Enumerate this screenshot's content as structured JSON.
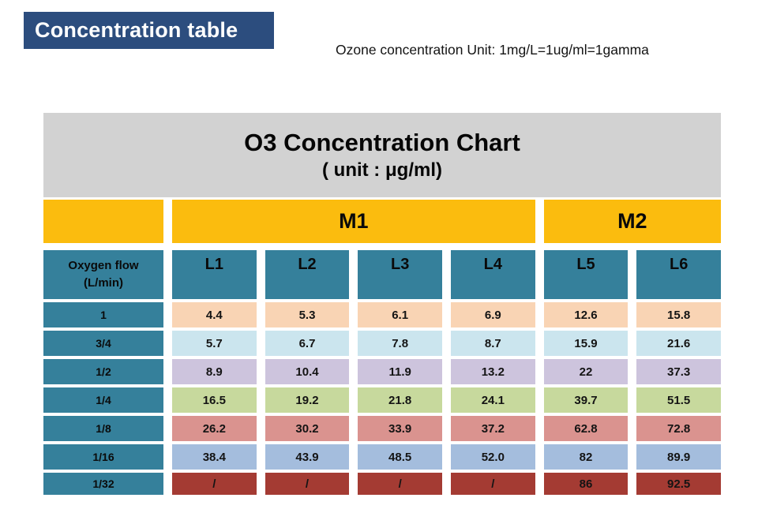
{
  "slide": {
    "banner_title": "Concentration table",
    "unit_note": "Ozone concentration Unit: 1mg/L=1ug/ml=1gamma"
  },
  "colors": {
    "banner_bg": "#2C4D7E",
    "banner_text": "#FFFFFF",
    "table_header_bg": "#D2D2D2",
    "group_header_bg": "#FBBC0E",
    "teal_header_bg": "#35809B",
    "page_bg": "#FFFFFF"
  },
  "chart_data": {
    "type": "table",
    "title": "O3 Concentration Chart",
    "subtitle": "( unit : μg/ml)",
    "corner_header": [
      "Oxygen flow",
      "(L/min)"
    ],
    "group_headers": [
      {
        "label": "M1",
        "columns": [
          "L1",
          "L2",
          "L3",
          "L4"
        ]
      },
      {
        "label": "M2",
        "columns": [
          "L5",
          "L6"
        ]
      }
    ],
    "column_headers": [
      "L1",
      "L2",
      "L3",
      "L4",
      "L5",
      "L6"
    ],
    "rows": [
      {
        "flow": "1",
        "values": [
          "4.4",
          "5.3",
          "6.1",
          "6.9",
          "12.6",
          "15.8"
        ],
        "bg": "#F9D4B4"
      },
      {
        "flow": "3/4",
        "values": [
          "5.7",
          "6.7",
          "7.8",
          "8.7",
          "15.9",
          "21.6"
        ],
        "bg": "#CBE5EE"
      },
      {
        "flow": "1/2",
        "values": [
          "8.9",
          "10.4",
          "11.9",
          "13.2",
          "22",
          "37.3"
        ],
        "bg": "#CDC4DD"
      },
      {
        "flow": "1/4",
        "values": [
          "16.5",
          "19.2",
          "21.8",
          "24.1",
          "39.7",
          "51.5"
        ],
        "bg": "#C7D99D"
      },
      {
        "flow": "1/8",
        "values": [
          "26.2",
          "30.2",
          "33.9",
          "37.2",
          "62.8",
          "72.8"
        ],
        "bg": "#DA938F"
      },
      {
        "flow": "1/16",
        "values": [
          "38.4",
          "43.9",
          "48.5",
          "52.0",
          "82",
          "89.9"
        ],
        "bg": "#A4BDDD"
      },
      {
        "flow": "1/32",
        "values": [
          "/",
          "/",
          "/",
          "/",
          "86",
          "92.5"
        ],
        "bg": "#A43B33"
      }
    ]
  }
}
